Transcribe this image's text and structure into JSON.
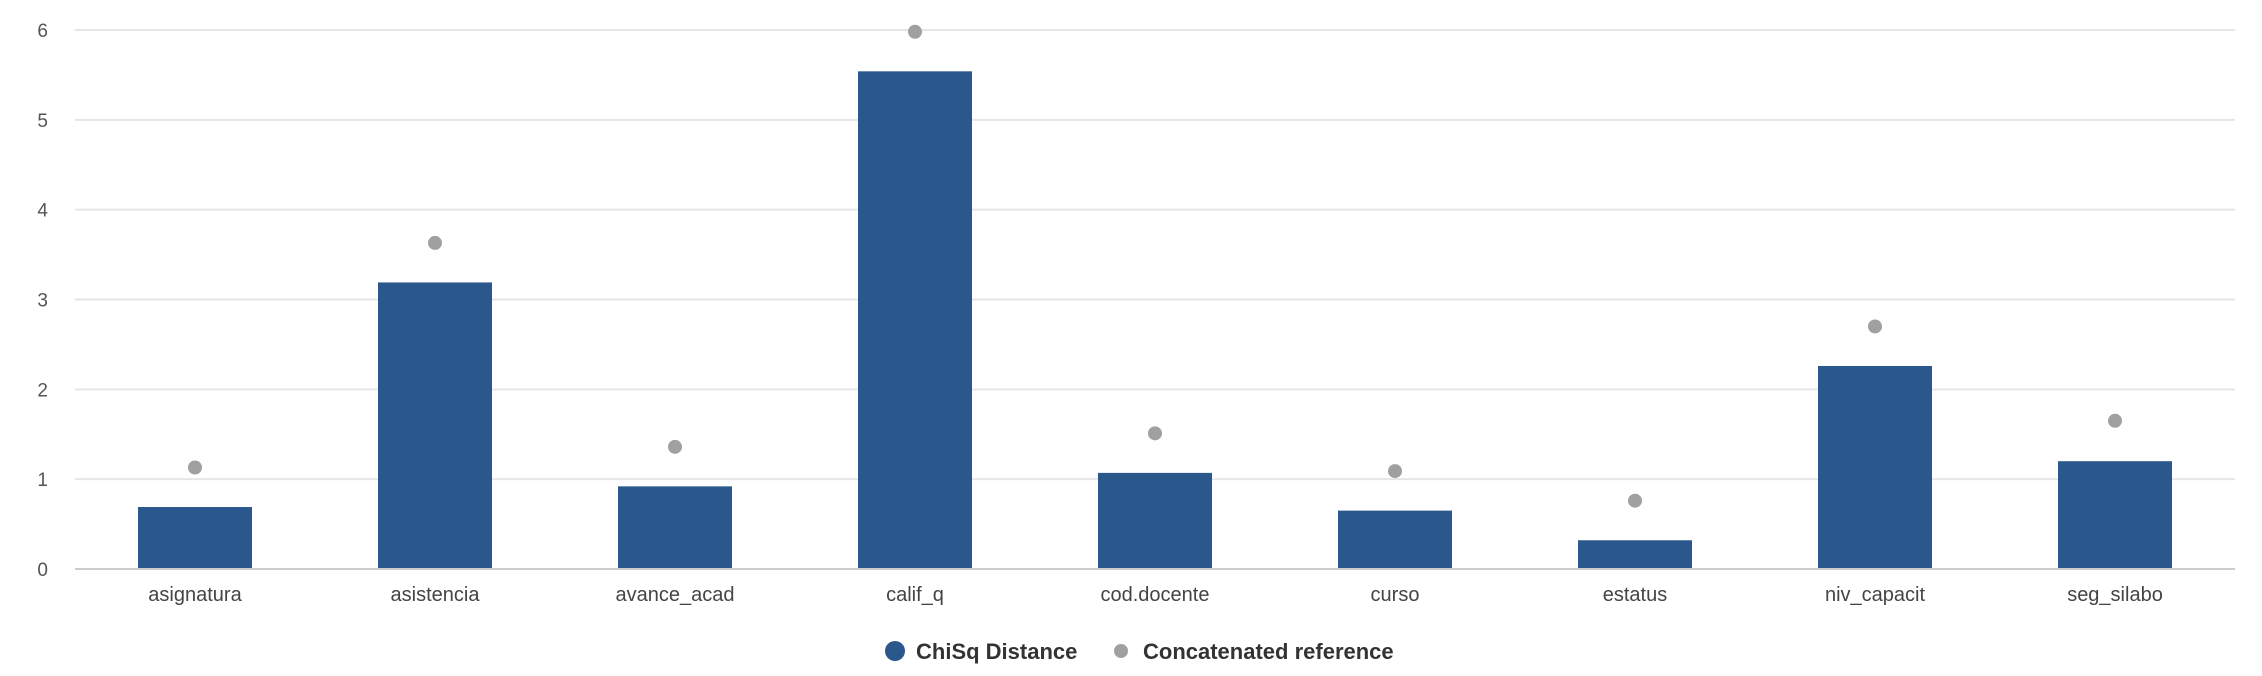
{
  "chart_data": {
    "type": "bar",
    "categories": [
      "asignatura",
      "asistencia",
      "avance_acad",
      "calif_q",
      "cod.docente",
      "curso",
      "estatus",
      "niv_capacit",
      "seg_silabo"
    ],
    "series": [
      {
        "name": "ChiSq Distance",
        "kind": "bar",
        "color": "#2b588c",
        "values": [
          0.69,
          3.19,
          0.92,
          5.54,
          1.07,
          0.65,
          0.32,
          2.26,
          1.2
        ]
      },
      {
        "name": "Concatenated reference",
        "kind": "point",
        "color": "#a0a0a0",
        "values": [
          1.13,
          3.63,
          1.36,
          5.98,
          1.51,
          1.09,
          0.76,
          2.7,
          1.65
        ]
      }
    ],
    "yticks": [
      0,
      1,
      2,
      3,
      4,
      5,
      6
    ],
    "ylim": [
      0,
      6
    ],
    "grid": true,
    "legend_position": "bottom-center"
  }
}
